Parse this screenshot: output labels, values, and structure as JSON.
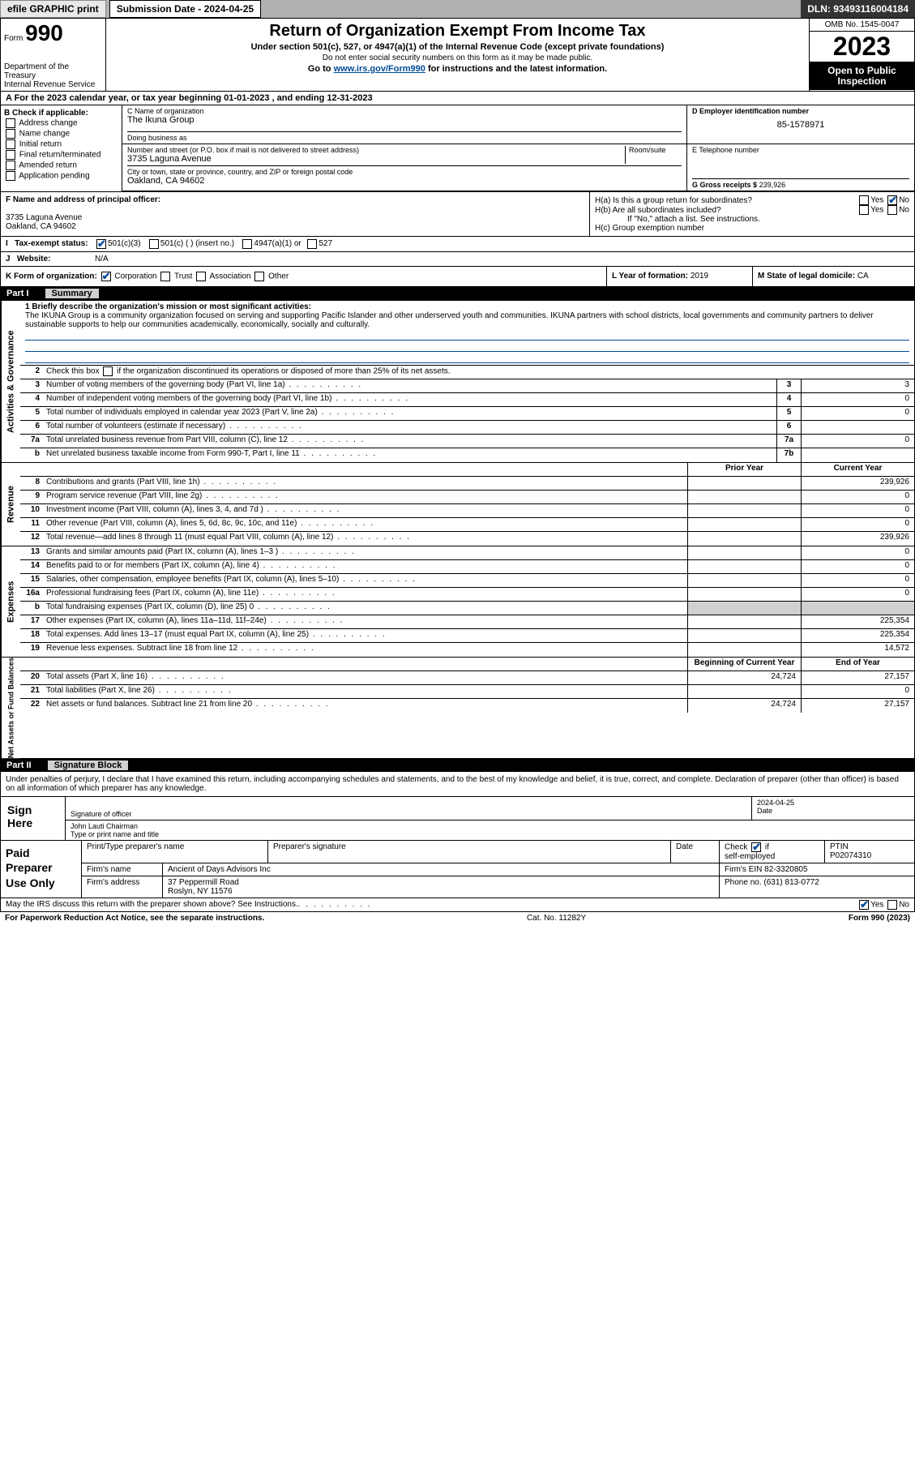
{
  "topbar": {
    "efile": "efile GRAPHIC print",
    "submission_label": "Submission Date - 2024-04-25",
    "dln": "DLN: 93493116004184"
  },
  "header": {
    "form_prefix": "Form",
    "form_number": "990",
    "dept": "Department of the Treasury",
    "irs": "Internal Revenue Service",
    "title": "Return of Organization Exempt From Income Tax",
    "subtitle": "Under section 501(c), 527, or 4947(a)(1) of the Internal Revenue Code (except private foundations)",
    "ssn_note": "Do not enter social security numbers on this form as it may be made public.",
    "goto": "Go to www.irs.gov/Form990 for instructions and the latest information.",
    "omb": "OMB No. 1545-0047",
    "year": "2023",
    "inspection": "Open to Public Inspection"
  },
  "row_a": "A For the 2023 calendar year, or tax year beginning 01-01-2023   , and ending 12-31-2023",
  "section_b": {
    "header": "B Check if applicable:",
    "options": [
      "Address change",
      "Name change",
      "Initial return",
      "Final return/terminated",
      "Amended return",
      "Application pending"
    ]
  },
  "section_c": {
    "name_label": "C Name of organization",
    "name": "The Ikuna Group",
    "dba_label": "Doing business as",
    "addr_label": "Number and street (or P.O. box if mail is not delivered to street address)",
    "room_label": "Room/suite",
    "addr": "3735 Laguna Avenue",
    "city_label": "City or town, state or province, country, and ZIP or foreign postal code",
    "city": "Oakland, CA  94602"
  },
  "section_d": {
    "label": "D Employer identification number",
    "ein": "85-1578971"
  },
  "section_e": {
    "label": "E Telephone number",
    "phone": ""
  },
  "section_g": {
    "label": "G Gross receipts $",
    "amount": "239,926"
  },
  "section_f": {
    "label": "F Name and address of principal officer:",
    "addr1": "3735 Laguna Avenue",
    "addr2": "Oakland, CA  94602"
  },
  "section_h": {
    "ha": "H(a)  Is this a group return for subordinates?",
    "hb": "H(b)  Are all subordinates included?",
    "hb_note": "If \"No,\" attach a list. See instructions.",
    "hc": "H(c)  Group exemption number",
    "yes": "Yes",
    "no": "No"
  },
  "section_i": {
    "label": "Tax-exempt status:",
    "opt1": "501(c)(3)",
    "opt2": "501(c) (  ) (insert no.)",
    "opt3": "4947(a)(1) or",
    "opt4": "527"
  },
  "section_j": {
    "label": "Website:",
    "value": "N/A"
  },
  "section_k": {
    "label": "K Form of organization:",
    "opts": [
      "Corporation",
      "Trust",
      "Association",
      "Other"
    ],
    "l_label": "L Year of formation:",
    "l_val": "2019",
    "m_label": "M State of legal domicile:",
    "m_val": "CA"
  },
  "part1": {
    "label": "Part I",
    "title": "Summary"
  },
  "summary": {
    "vert_labels": [
      "Activities & Governance",
      "Revenue",
      "Expenses",
      "Net Assets or Fund Balances"
    ],
    "mission_label": "1  Briefly describe the organization's mission or most significant activities:",
    "mission": "The IKUNA Group is a community organization focused on serving and supporting Pacific Islander and other underserved youth and communities. IKUNA partners with school districts, local governments and community partners to deliver sustainable supports to help our communities academically, economically, socially and culturally.",
    "line2": "Check this box      if the organization discontinued its operations or disposed of more than 25% of its net assets.",
    "rows_gov": [
      {
        "n": "3",
        "d": "Number of voting members of the governing body (Part VI, line 1a)",
        "box": "3",
        "v": "3"
      },
      {
        "n": "4",
        "d": "Number of independent voting members of the governing body (Part VI, line 1b)",
        "box": "4",
        "v": "0"
      },
      {
        "n": "5",
        "d": "Total number of individuals employed in calendar year 2023 (Part V, line 2a)",
        "box": "5",
        "v": "0"
      },
      {
        "n": "6",
        "d": "Total number of volunteers (estimate if necessary)",
        "box": "6",
        "v": ""
      },
      {
        "n": "7a",
        "d": "Total unrelated business revenue from Part VIII, column (C), line 12",
        "box": "7a",
        "v": "0"
      },
      {
        "n": "b",
        "d": "Net unrelated business taxable income from Form 990-T, Part I, line 11",
        "box": "7b",
        "v": ""
      }
    ],
    "col_hdr_prior": "Prior Year",
    "col_hdr_curr": "Current Year",
    "rows_rev": [
      {
        "n": "8",
        "d": "Contributions and grants (Part VIII, line 1h)",
        "p": "",
        "c": "239,926"
      },
      {
        "n": "9",
        "d": "Program service revenue (Part VIII, line 2g)",
        "p": "",
        "c": "0"
      },
      {
        "n": "10",
        "d": "Investment income (Part VIII, column (A), lines 3, 4, and 7d )",
        "p": "",
        "c": "0"
      },
      {
        "n": "11",
        "d": "Other revenue (Part VIII, column (A), lines 5, 6d, 8c, 9c, 10c, and 11e)",
        "p": "",
        "c": "0"
      },
      {
        "n": "12",
        "d": "Total revenue—add lines 8 through 11 (must equal Part VIII, column (A), line 12)",
        "p": "",
        "c": "239,926"
      }
    ],
    "rows_exp": [
      {
        "n": "13",
        "d": "Grants and similar amounts paid (Part IX, column (A), lines 1–3 )",
        "p": "",
        "c": "0"
      },
      {
        "n": "14",
        "d": "Benefits paid to or for members (Part IX, column (A), line 4)",
        "p": "",
        "c": "0"
      },
      {
        "n": "15",
        "d": "Salaries, other compensation, employee benefits (Part IX, column (A), lines 5–10)",
        "p": "",
        "c": "0"
      },
      {
        "n": "16a",
        "d": "Professional fundraising fees (Part IX, column (A), line 11e)",
        "p": "",
        "c": "0"
      },
      {
        "n": "b",
        "d": "Total fundraising expenses (Part IX, column (D), line 25) 0",
        "p": "shaded",
        "c": "shaded"
      },
      {
        "n": "17",
        "d": "Other expenses (Part IX, column (A), lines 11a–11d, 11f–24e)",
        "p": "",
        "c": "225,354"
      },
      {
        "n": "18",
        "d": "Total expenses. Add lines 13–17 (must equal Part IX, column (A), line 25)",
        "p": "",
        "c": "225,354"
      },
      {
        "n": "19",
        "d": "Revenue less expenses. Subtract line 18 from line 12",
        "p": "",
        "c": "14,572"
      }
    ],
    "col_hdr_beg": "Beginning of Current Year",
    "col_hdr_end": "End of Year",
    "rows_net": [
      {
        "n": "20",
        "d": "Total assets (Part X, line 16)",
        "p": "24,724",
        "c": "27,157"
      },
      {
        "n": "21",
        "d": "Total liabilities (Part X, line 26)",
        "p": "",
        "c": "0"
      },
      {
        "n": "22",
        "d": "Net assets or fund balances. Subtract line 21 from line 20",
        "p": "24,724",
        "c": "27,157"
      }
    ]
  },
  "part2": {
    "label": "Part II",
    "title": "Signature Block"
  },
  "sig_intro": "Under penalties of perjury, I declare that I have examined this return, including accompanying schedules and statements, and to the best of my knowledge and belief, it is true, correct, and complete. Declaration of preparer (other than officer) is based on all information of which preparer has any knowledge.",
  "sign_here": {
    "label": "Sign Here",
    "sig_label": "Signature of officer",
    "date_label": "Date",
    "date": "2024-04-25",
    "name": "John Lauti  Chairman",
    "name_label": "Type or print name and title"
  },
  "paid": {
    "label": "Paid Preparer Use Only",
    "h1": "Print/Type preparer's name",
    "h2": "Preparer's signature",
    "h3": "Date",
    "check_label": "Check        if self-employed",
    "ptin_label": "PTIN",
    "ptin": "P02074310",
    "firm_name_label": "Firm's name",
    "firm_name": "Ancient of Days Advisors Inc",
    "firm_ein_label": "Firm's EIN",
    "firm_ein": "82-3320805",
    "firm_addr_label": "Firm's address",
    "firm_addr1": "37 Peppermill Road",
    "firm_addr2": "Roslyn, NY  11576",
    "phone_label": "Phone no.",
    "phone": "(631) 813-0772"
  },
  "discuss": "May the IRS discuss this return with the preparer shown above? See Instructions.",
  "footer": {
    "left": "For Paperwork Reduction Act Notice, see the separate instructions.",
    "mid": "Cat. No. 11282Y",
    "right": "Form 990 (2023)"
  }
}
